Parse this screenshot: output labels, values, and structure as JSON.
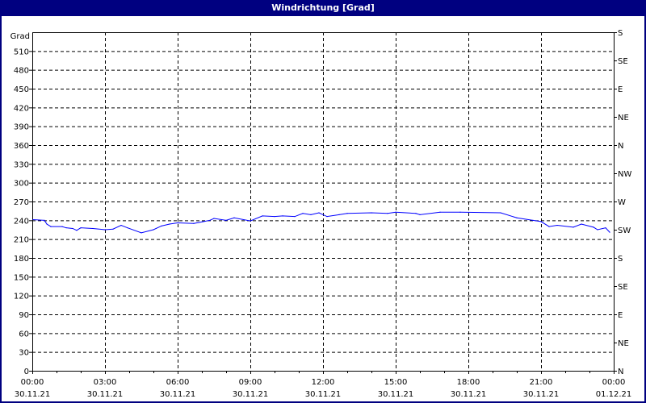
{
  "window": {
    "title": "Windrichtung [Grad]"
  },
  "chart_data": {
    "type": "line",
    "title": "Windrichtung [Grad]",
    "ylabel": "Grad",
    "ylim": [
      0,
      540
    ],
    "yticks": [
      0,
      30,
      60,
      90,
      120,
      150,
      180,
      210,
      240,
      270,
      300,
      330,
      360,
      390,
      420,
      450,
      480,
      510
    ],
    "right_axis_labels": [
      "N",
      "NE",
      "E",
      "SE",
      "S",
      "SW",
      "W",
      "NW",
      "N",
      "NE",
      "E",
      "SE",
      "S"
    ],
    "xticks": [
      {
        "time": "00:00",
        "date": "30.11.21"
      },
      {
        "time": "03:00",
        "date": "30.11.21"
      },
      {
        "time": "06:00",
        "date": "30.11.21"
      },
      {
        "time": "09:00",
        "date": "30.11.21"
      },
      {
        "time": "12:00",
        "date": "30.11.21"
      },
      {
        "time": "15:00",
        "date": "30.11.21"
      },
      {
        "time": "18:00",
        "date": "30.11.21"
      },
      {
        "time": "21:00",
        "date": "30.11.21"
      },
      {
        "time": "00:00",
        "date": "01.12.21"
      }
    ],
    "grid": true,
    "line_color": "#0000ff",
    "series": [
      {
        "points": [
          [
            "00:02",
            241
          ],
          [
            "00:30",
            240
          ],
          [
            "00:36",
            234
          ],
          [
            "00:46",
            230
          ],
          [
            "01:14",
            230
          ],
          [
            "01:24",
            228
          ],
          [
            "01:40",
            227
          ],
          [
            "01:50",
            224
          ],
          [
            "02:00",
            228
          ],
          [
            "02:30",
            227
          ],
          [
            "03:00",
            225
          ],
          [
            "03:20",
            226
          ],
          [
            "03:40",
            232
          ],
          [
            "03:56",
            228
          ],
          [
            "04:30",
            220
          ],
          [
            "05:00",
            225
          ],
          [
            "05:20",
            231
          ],
          [
            "05:40",
            234
          ],
          [
            "06:00",
            236
          ],
          [
            "06:40",
            235
          ],
          [
            "07:20",
            240
          ],
          [
            "07:30",
            243
          ],
          [
            "08:00",
            240
          ],
          [
            "08:20",
            244
          ],
          [
            "09:00",
            239
          ],
          [
            "09:30",
            247
          ],
          [
            "10:00",
            246
          ],
          [
            "10:20",
            247
          ],
          [
            "10:50",
            246
          ],
          [
            "11:10",
            251
          ],
          [
            "11:30",
            249
          ],
          [
            "11:50",
            252
          ],
          [
            "12:10",
            246
          ],
          [
            "12:40",
            249
          ],
          [
            "13:00",
            251
          ],
          [
            "14:00",
            252
          ],
          [
            "14:40",
            251
          ],
          [
            "15:00",
            253
          ],
          [
            "15:50",
            251
          ],
          [
            "16:00",
            249
          ],
          [
            "16:50",
            253
          ],
          [
            "17:40",
            253
          ],
          [
            "19:20",
            252
          ],
          [
            "20:00",
            244
          ],
          [
            "20:40",
            240
          ],
          [
            "21:00",
            238
          ],
          [
            "21:20",
            230
          ],
          [
            "21:40",
            232
          ],
          [
            "22:20",
            229
          ],
          [
            "22:40",
            234
          ],
          [
            "23:10",
            229
          ],
          [
            "23:20",
            225
          ],
          [
            "23:40",
            228
          ],
          [
            "23:50",
            221
          ]
        ]
      }
    ]
  }
}
